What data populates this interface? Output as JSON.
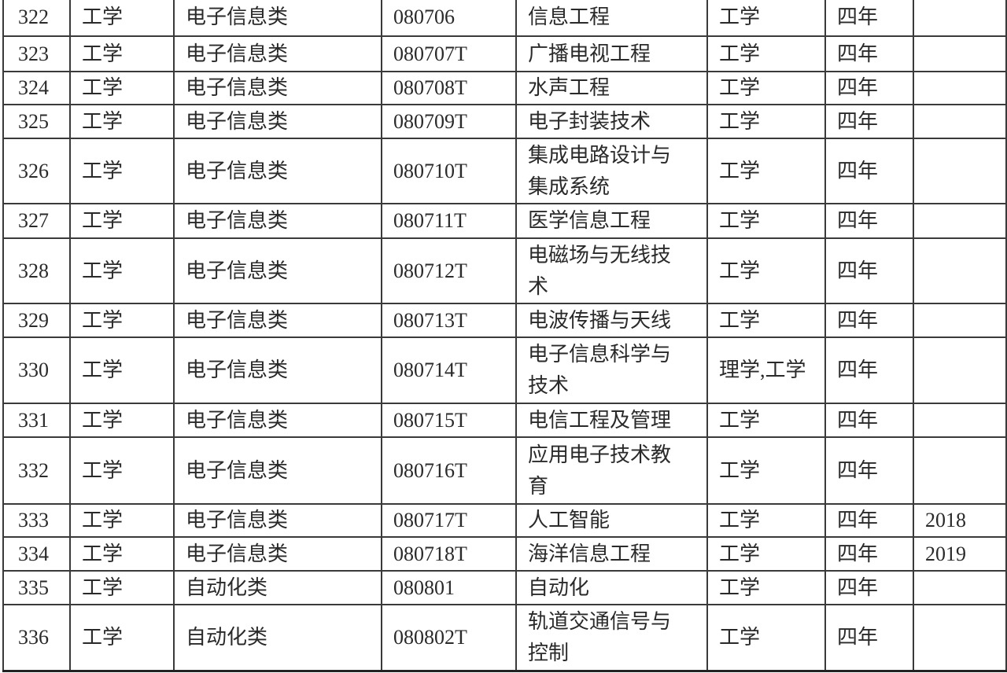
{
  "rows": [
    {
      "no": "322",
      "discipline": "工学",
      "category": "电子信息类",
      "code": "080706",
      "major": "信息工程",
      "degree": "工学",
      "years": "四年",
      "year_added": ""
    },
    {
      "no": "323",
      "discipline": "工学",
      "category": "电子信息类",
      "code": "080707T",
      "major": "广播电视工程",
      "degree": "工学",
      "years": "四年",
      "year_added": ""
    },
    {
      "no": "324",
      "discipline": "工学",
      "category": "电子信息类",
      "code": "080708T",
      "major": "水声工程",
      "degree": "工学",
      "years": "四年",
      "year_added": ""
    },
    {
      "no": "325",
      "discipline": "工学",
      "category": "电子信息类",
      "code": "080709T",
      "major": "电子封装技术",
      "degree": "工学",
      "years": "四年",
      "year_added": ""
    },
    {
      "no": "326",
      "discipline": "工学",
      "category": "电子信息类",
      "code": "080710T",
      "major": "集成电路设计与集成系统",
      "degree": "工学",
      "years": "四年",
      "year_added": ""
    },
    {
      "no": "327",
      "discipline": "工学",
      "category": "电子信息类",
      "code": "080711T",
      "major": "医学信息工程",
      "degree": "工学",
      "years": "四年",
      "year_added": ""
    },
    {
      "no": "328",
      "discipline": "工学",
      "category": "电子信息类",
      "code": "080712T",
      "major": "电磁场与无线技术",
      "degree": "工学",
      "years": "四年",
      "year_added": ""
    },
    {
      "no": "329",
      "discipline": "工学",
      "category": "电子信息类",
      "code": "080713T",
      "major": "电波传播与天线",
      "degree": "工学",
      "years": "四年",
      "year_added": ""
    },
    {
      "no": "330",
      "discipline": "工学",
      "category": "电子信息类",
      "code": "080714T",
      "major": "电子信息科学与技术",
      "degree": "理学,工学",
      "years": "四年",
      "year_added": ""
    },
    {
      "no": "331",
      "discipline": "工学",
      "category": "电子信息类",
      "code": "080715T",
      "major": "电信工程及管理",
      "degree": "工学",
      "years": "四年",
      "year_added": ""
    },
    {
      "no": "332",
      "discipline": "工学",
      "category": "电子信息类",
      "code": "080716T",
      "major": "应用电子技术教育",
      "degree": "工学",
      "years": "四年",
      "year_added": ""
    },
    {
      "no": "333",
      "discipline": "工学",
      "category": "电子信息类",
      "code": "080717T",
      "major": "人工智能",
      "degree": "工学",
      "years": "四年",
      "year_added": "2018"
    },
    {
      "no": "334",
      "discipline": "工学",
      "category": "电子信息类",
      "code": "080718T",
      "major": "海洋信息工程",
      "degree": "工学",
      "years": "四年",
      "year_added": "2019"
    },
    {
      "no": "335",
      "discipline": "工学",
      "category": "自动化类",
      "code": "080801",
      "major": "自动化",
      "degree": "工学",
      "years": "四年",
      "year_added": ""
    },
    {
      "no": "336",
      "discipline": "工学",
      "category": "自动化类",
      "code": "080802T",
      "major": "轨道交通信号与控制",
      "degree": "工学",
      "years": "四年",
      "year_added": ""
    }
  ]
}
